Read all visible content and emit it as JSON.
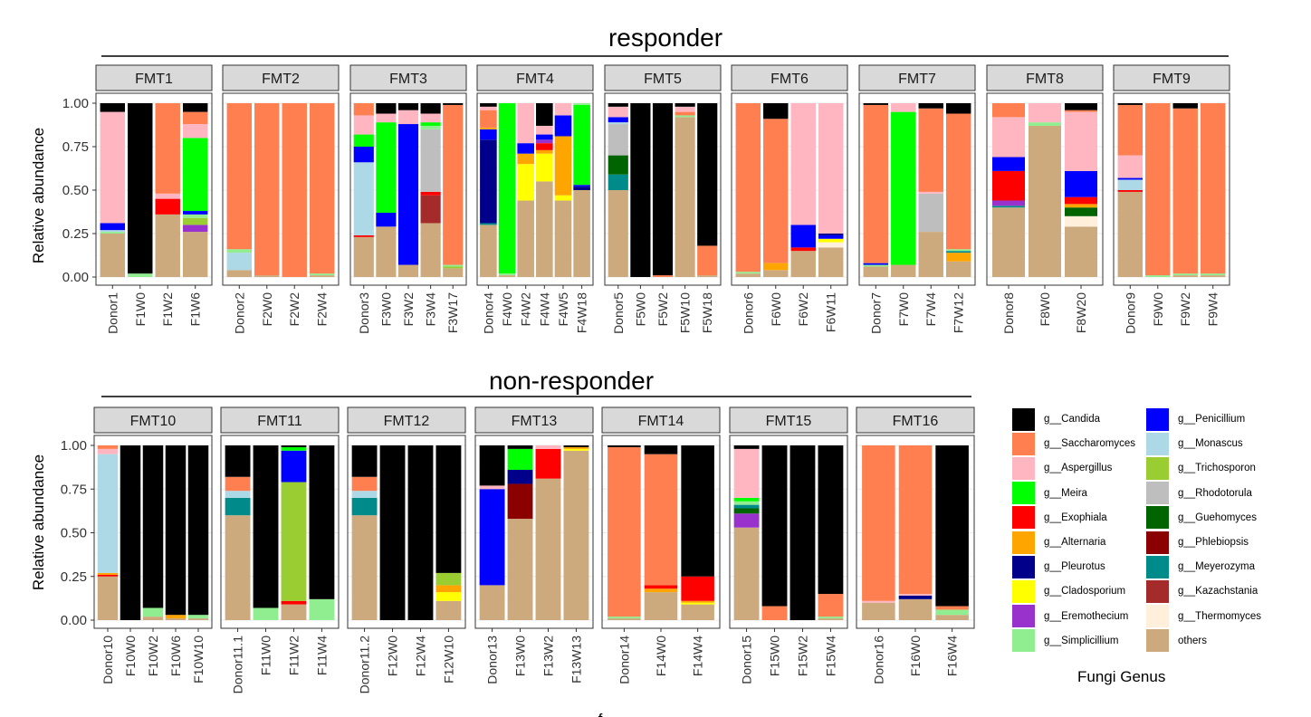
{
  "sections": [
    {
      "title": "responder"
    },
    {
      "title": "non-responder"
    }
  ],
  "x_axis_title": "f",
  "chart_data": {
    "type": "bar",
    "ylabel": "Relative abundance",
    "ylim": [
      0,
      1
    ],
    "y_ticks": [
      "0.00",
      "0.25",
      "0.50",
      "0.75",
      "1.00"
    ],
    "legend_title": "Fungi Genus",
    "legend_placement": "bottom-right",
    "genera": [
      {
        "label": "g__Candida",
        "color": "#000000"
      },
      {
        "label": "g__Saccharomyces",
        "color": "#FF7F50"
      },
      {
        "label": "g__Aspergillus",
        "color": "#FFB6C1"
      },
      {
        "label": "g__Meira",
        "color": "#00FF00"
      },
      {
        "label": "g__Exophiala",
        "color": "#FF0000"
      },
      {
        "label": "g__Alternaria",
        "color": "#FFA500"
      },
      {
        "label": "g__Pleurotus",
        "color": "#00008B"
      },
      {
        "label": "g__Cladosporium",
        "color": "#FFFF00"
      },
      {
        "label": "g__Eremothecium",
        "color": "#9932CC"
      },
      {
        "label": "g__Simplicillium",
        "color": "#90EE90"
      },
      {
        "label": "g__Penicillium",
        "color": "#0000FF"
      },
      {
        "label": "g__Monascus",
        "color": "#ADD8E6"
      },
      {
        "label": "g__Trichosporon",
        "color": "#9ACD32"
      },
      {
        "label": "g__Rhodotorula",
        "color": "#BEBEBE"
      },
      {
        "label": "g__Guehomyces",
        "color": "#006400"
      },
      {
        "label": "g__Phlebiopsis",
        "color": "#8B0000"
      },
      {
        "label": "g__Meyerozyma",
        "color": "#008B8B"
      },
      {
        "label": "g__Kazachstania",
        "color": "#A52A2A"
      },
      {
        "label": "g__Thermomyces",
        "color": "#FFEFDB"
      },
      {
        "label": "others",
        "color": "#CDAA7D"
      }
    ],
    "panels": [
      {
        "name": "FMT1",
        "row": 0,
        "samples": [
          {
            "x": "Donor1",
            "segs": {
              "others": 0.25,
              "Simplicillium": 0.01,
              "Monascus": 0.01,
              "Penicillium": 0.04,
              "Aspergillus": 0.64,
              "Candida": 0.05
            }
          },
          {
            "x": "F1W0",
            "segs": {
              "Simplicillium": 0.02,
              "Candida": 0.98
            }
          },
          {
            "x": "F1W2",
            "segs": {
              "others": 0.36,
              "Exophiala": 0.09,
              "Aspergillus": 0.03,
              "Saccharomyces": 0.52
            }
          },
          {
            "x": "F1W6",
            "segs": {
              "others": 0.26,
              "Eremothecium": 0.04,
              "Trichosporon": 0.04,
              "Simplicillium": 0.02,
              "Penicillium": 0.02,
              "Meira": 0.42,
              "Aspergillus": 0.08,
              "Saccharomyces": 0.07,
              "Candida": 0.05
            }
          }
        ]
      },
      {
        "name": "FMT2",
        "row": 0,
        "samples": [
          {
            "x": "Donor2",
            "segs": {
              "others": 0.04,
              "Monascus": 0.1,
              "Simplicillium": 0.02,
              "Saccharomyces": 0.84
            }
          },
          {
            "x": "F2W0",
            "segs": {
              "others": 0.01,
              "Saccharomyces": 0.99
            }
          },
          {
            "x": "F2W2",
            "segs": {
              "Saccharomyces": 1.0
            }
          },
          {
            "x": "F2W4",
            "segs": {
              "others": 0.01,
              "Simplicillium": 0.01,
              "Saccharomyces": 0.98
            }
          }
        ]
      },
      {
        "name": "FMT3",
        "row": 0,
        "samples": [
          {
            "x": "Donor3",
            "segs": {
              "others": 0.23,
              "Exophiala": 0.01,
              "Monascus": 0.42,
              "Penicillium": 0.09,
              "Meira": 0.07,
              "Aspergillus": 0.11,
              "Saccharomyces": 0.07
            }
          },
          {
            "x": "F3W0",
            "segs": {
              "others": 0.29,
              "Penicillium": 0.08,
              "Meira": 0.52,
              "Aspergillus": 0.05,
              "Candida": 0.06
            }
          },
          {
            "x": "F3W2",
            "segs": {
              "others": 0.07,
              "Penicillium": 0.81,
              "Aspergillus": 0.08,
              "Candida": 0.04
            }
          },
          {
            "x": "F3W4",
            "segs": {
              "others": 0.31,
              "Kazachstania": 0.16,
              "Exophiala": 0.02,
              "Rhodotorula": 0.36,
              "Simplicillium": 0.02,
              "Meira": 0.02,
              "Aspergillus": 0.05,
              "Candida": 0.06
            }
          },
          {
            "x": "F3W17",
            "segs": {
              "others": 0.05,
              "Trichosporon": 0.01,
              "Simplicillium": 0.01,
              "Saccharomyces": 0.92,
              "Candida": 0.01
            }
          }
        ]
      },
      {
        "name": "FMT4",
        "row": 0,
        "samples": [
          {
            "x": "Donor4",
            "segs": {
              "others": 0.3,
              "Meyerozyma": 0.01,
              "Pleurotus": 0.48,
              "Penicillium": 0.06,
              "Alternaria": 0.01,
              "Saccharomyces": 0.1,
              "Aspergillus": 0.02,
              "Candida": 0.02
            }
          },
          {
            "x": "F4W0",
            "segs": {
              "others": 0.01,
              "Simplicillium": 0.01,
              "Meira": 0.98
            }
          },
          {
            "x": "F4W2",
            "segs": {
              "others": 0.44,
              "Cladosporium": 0.21,
              "Alternaria": 0.06,
              "Penicillium": 0.06,
              "Aspergillus": 0.23
            }
          },
          {
            "x": "F4W4",
            "segs": {
              "others": 0.55,
              "Cladosporium": 0.16,
              "Alternaria": 0.02,
              "Exophiala": 0.04,
              "Eremothecium": 0.02,
              "Penicillium": 0.03,
              "Aspergillus": 0.05,
              "Candida": 0.13
            }
          },
          {
            "x": "F4W5",
            "segs": {
              "others": 0.44,
              "Cladosporium": 0.03,
              "Alternaria": 0.34,
              "Penicillium": 0.12,
              "Aspergillus": 0.07
            }
          },
          {
            "x": "F4W18",
            "segs": {
              "others": 0.5,
              "Pleurotus": 0.02,
              "Penicillium": 0.01,
              "Meira": 0.46,
              "Simplicillium": 0.01
            }
          }
        ]
      },
      {
        "name": "FMT5",
        "row": 0,
        "samples": [
          {
            "x": "Donor5",
            "segs": {
              "others": 0.5,
              "Meyerozyma": 0.09,
              "Guehomyces": 0.11,
              "Rhodotorula": 0.18,
              "Monascus": 0.01,
              "Penicillium": 0.03,
              "Aspergillus": 0.06,
              "Candida": 0.02
            }
          },
          {
            "x": "F5W0",
            "segs": {
              "Candida": 1.0
            }
          },
          {
            "x": "F5W2",
            "segs": {
              "Saccharomyces": 0.01,
              "Candida": 0.99
            }
          },
          {
            "x": "F5W10",
            "segs": {
              "others": 0.92,
              "Simplicillium": 0.01,
              "Saccharomyces": 0.02,
              "Aspergillus": 0.03,
              "Candida": 0.02
            }
          },
          {
            "x": "F5W18",
            "segs": {
              "others": 0.01,
              "Saccharomyces": 0.17,
              "Candida": 0.82
            }
          }
        ]
      },
      {
        "name": "FMT6",
        "row": 0,
        "samples": [
          {
            "x": "Donor6",
            "segs": {
              "others": 0.02,
              "Simplicillium": 0.01,
              "Saccharomyces": 0.97
            }
          },
          {
            "x": "F6W0",
            "segs": {
              "others": 0.04,
              "Alternaria": 0.04,
              "Saccharomyces": 0.83,
              "Candida": 0.09
            }
          },
          {
            "x": "F6W2",
            "segs": {
              "others": 0.15,
              "Exophiala": 0.02,
              "Penicillium": 0.13,
              "Aspergillus": 0.7
            }
          },
          {
            "x": "F6W11",
            "segs": {
              "others": 0.17,
              "Thermomyces": 0.03,
              "Cladosporium": 0.02,
              "Penicillium": 0.02,
              "Pleurotus": 0.01,
              "Aspergillus": 0.75
            }
          }
        ]
      },
      {
        "name": "FMT7",
        "row": 0,
        "samples": [
          {
            "x": "Donor7",
            "segs": {
              "others": 0.06,
              "Simplicillium": 0.01,
              "Penicillium": 0.01,
              "Saccharomyces": 0.91,
              "Candida": 0.01
            }
          },
          {
            "x": "F7W0",
            "segs": {
              "others": 0.07,
              "Meira": 0.88,
              "Aspergillus": 0.05
            }
          },
          {
            "x": "F7W4",
            "segs": {
              "others": 0.26,
              "Rhodotorula": 0.22,
              "Aspergillus": 0.01,
              "Saccharomyces": 0.48,
              "Candida": 0.03
            }
          },
          {
            "x": "F7W12",
            "segs": {
              "others": 0.09,
              "Alternaria": 0.05,
              "Meyerozyma": 0.01,
              "Simplicillium": 0.01,
              "Saccharomyces": 0.78,
              "Candida": 0.06
            }
          }
        ]
      },
      {
        "name": "FMT8",
        "row": 0,
        "samples": [
          {
            "x": "Donor8",
            "segs": {
              "others": 0.4,
              "Meyerozyma": 0.01,
              "Eremothecium": 0.03,
              "Exophiala": 0.17,
              "Penicillium": 0.08,
              "Aspergillus": 0.23,
              "Saccharomyces": 0.08
            }
          },
          {
            "x": "F8W0",
            "segs": {
              "others": 0.87,
              "Simplicillium": 0.02,
              "Aspergillus": 0.11
            }
          },
          {
            "x": "F8W20",
            "segs": {
              "others": 0.29,
              "Thermomyces": 0.06,
              "Guehomyces": 0.05,
              "Alternaria": 0.02,
              "Exophiala": 0.04,
              "Penicillium": 0.15,
              "Aspergillus": 0.34,
              "Saccharomyces": 0.01,
              "Candida": 0.04
            }
          }
        ]
      },
      {
        "name": "FMT9",
        "row": 0,
        "samples": [
          {
            "x": "Donor9",
            "segs": {
              "others": 0.49,
              "Exophiala": 0.01,
              "Monascus": 0.06,
              "Penicillium": 0.01,
              "Aspergillus": 0.13,
              "Saccharomyces": 0.29,
              "Candida": 0.01
            }
          },
          {
            "x": "F9W0",
            "segs": {
              "Simplicillium": 0.01,
              "Saccharomyces": 0.99
            }
          },
          {
            "x": "F9W2",
            "segs": {
              "others": 0.01,
              "Simplicillium": 0.01,
              "Saccharomyces": 0.95,
              "Candida": 0.03
            }
          },
          {
            "x": "F9W4",
            "segs": {
              "others": 0.01,
              "Simplicillium": 0.01,
              "Saccharomyces": 0.98
            }
          }
        ]
      },
      {
        "name": "FMT10",
        "row": 1,
        "samples": [
          {
            "x": "Donor10",
            "segs": {
              "others": 0.25,
              "Exophiala": 0.01,
              "Alternaria": 0.01,
              "Monascus": 0.68,
              "Aspergillus": 0.03,
              "Saccharomyces": 0.02
            }
          },
          {
            "x": "F10W0",
            "segs": {
              "Candida": 1.0
            }
          },
          {
            "x": "F10W2",
            "segs": {
              "others": 0.02,
              "Simplicillium": 0.05,
              "Candida": 0.93
            }
          },
          {
            "x": "F10W6",
            "segs": {
              "others": 0.01,
              "Alternaria": 0.02,
              "Candida": 0.97
            }
          },
          {
            "x": "F10W10",
            "segs": {
              "others": 0.01,
              "Simplicillium": 0.02,
              "Candida": 0.97
            }
          }
        ]
      },
      {
        "name": "FMT11",
        "row": 1,
        "samples": [
          {
            "x": "Donor11.1",
            "segs": {
              "others": 0.6,
              "Meyerozyma": 0.1,
              "Monascus": 0.04,
              "Saccharomyces": 0.08,
              "Candida": 0.18
            }
          },
          {
            "x": "F11W0",
            "segs": {
              "Simplicillium": 0.07,
              "Candida": 0.93
            }
          },
          {
            "x": "F11W2",
            "segs": {
              "others": 0.09,
              "Exophiala": 0.02,
              "Trichosporon": 0.68,
              "Penicillium": 0.18,
              "Meira": 0.02,
              "Candida": 0.01
            }
          },
          {
            "x": "F11W4",
            "segs": {
              "Simplicillium": 0.12,
              "Candida": 0.88
            }
          }
        ]
      },
      {
        "name": "FMT12",
        "row": 1,
        "samples": [
          {
            "x": "Donor11.2",
            "segs": {
              "others": 0.6,
              "Meyerozyma": 0.1,
              "Monascus": 0.04,
              "Saccharomyces": 0.08,
              "Candida": 0.18
            }
          },
          {
            "x": "F12W0",
            "segs": {
              "Candida": 1.0
            }
          },
          {
            "x": "F12W4",
            "segs": {
              "Candida": 1.0
            }
          },
          {
            "x": "F12W10",
            "segs": {
              "others": 0.11,
              "Cladosporium": 0.05,
              "Alternaria": 0.04,
              "Trichosporon": 0.07,
              "Candida": 0.73
            }
          }
        ]
      },
      {
        "name": "FMT13",
        "row": 1,
        "samples": [
          {
            "x": "Donor13",
            "segs": {
              "others": 0.2,
              "Penicillium": 0.55,
              "Aspergillus": 0.02,
              "Candida": 0.23
            }
          },
          {
            "x": "F13W0",
            "segs": {
              "others": 0.58,
              "Phlebiopsis": 0.2,
              "Pleurotus": 0.08,
              "Meira": 0.12,
              "Candida": 0.02
            }
          },
          {
            "x": "F13W2",
            "segs": {
              "others": 0.81,
              "Exophiala": 0.17,
              "Aspergillus": 0.02
            }
          },
          {
            "x": "F13W13",
            "segs": {
              "others": 0.97,
              "Cladosporium": 0.01,
              "Alternaria": 0.01,
              "Candida": 0.01
            }
          }
        ]
      },
      {
        "name": "FMT14",
        "row": 1,
        "samples": [
          {
            "x": "Donor14",
            "segs": {
              "others": 0.01,
              "Simplicillium": 0.01,
              "Saccharomyces": 0.97,
              "Candida": 0.01
            }
          },
          {
            "x": "F14W0",
            "segs": {
              "others": 0.16,
              "Alternaria": 0.02,
              "Exophiala": 0.02,
              "Saccharomyces": 0.75,
              "Candida": 0.05
            }
          },
          {
            "x": "F14W4",
            "segs": {
              "others": 0.09,
              "Cladosporium": 0.01,
              "Alternaria": 0.01,
              "Exophiala": 0.14,
              "Candida": 0.75
            }
          }
        ]
      },
      {
        "name": "FMT15",
        "row": 1,
        "samples": [
          {
            "x": "Donor15",
            "segs": {
              "others": 0.53,
              "Eremothecium": 0.08,
              "Guehomyces": 0.03,
              "Meyerozyma": 0.02,
              "Simplicillium": 0.02,
              "Meira": 0.02,
              "Aspergillus": 0.28,
              "Candida": 0.02
            }
          },
          {
            "x": "F15W0",
            "segs": {
              "Saccharomyces": 0.08,
              "Candida": 0.92
            }
          },
          {
            "x": "F15W2",
            "segs": {
              "Candida": 1.0
            }
          },
          {
            "x": "F15W4",
            "segs": {
              "others": 0.01,
              "Simplicillium": 0.01,
              "Saccharomyces": 0.13,
              "Candida": 0.85
            }
          }
        ]
      },
      {
        "name": "FMT16",
        "row": 1,
        "samples": [
          {
            "x": "Donor16",
            "segs": {
              "others": 0.1,
              "Aspergillus": 0.01,
              "Saccharomyces": 0.89
            }
          },
          {
            "x": "F16W0",
            "segs": {
              "others": 0.12,
              "Pleurotus": 0.02,
              "Aspergillus": 0.01,
              "Saccharomyces": 0.85
            }
          },
          {
            "x": "F16W4",
            "segs": {
              "others": 0.03,
              "Simplicillium": 0.03,
              "Saccharomyces": 0.02,
              "Candida": 0.92
            }
          }
        ]
      }
    ]
  }
}
